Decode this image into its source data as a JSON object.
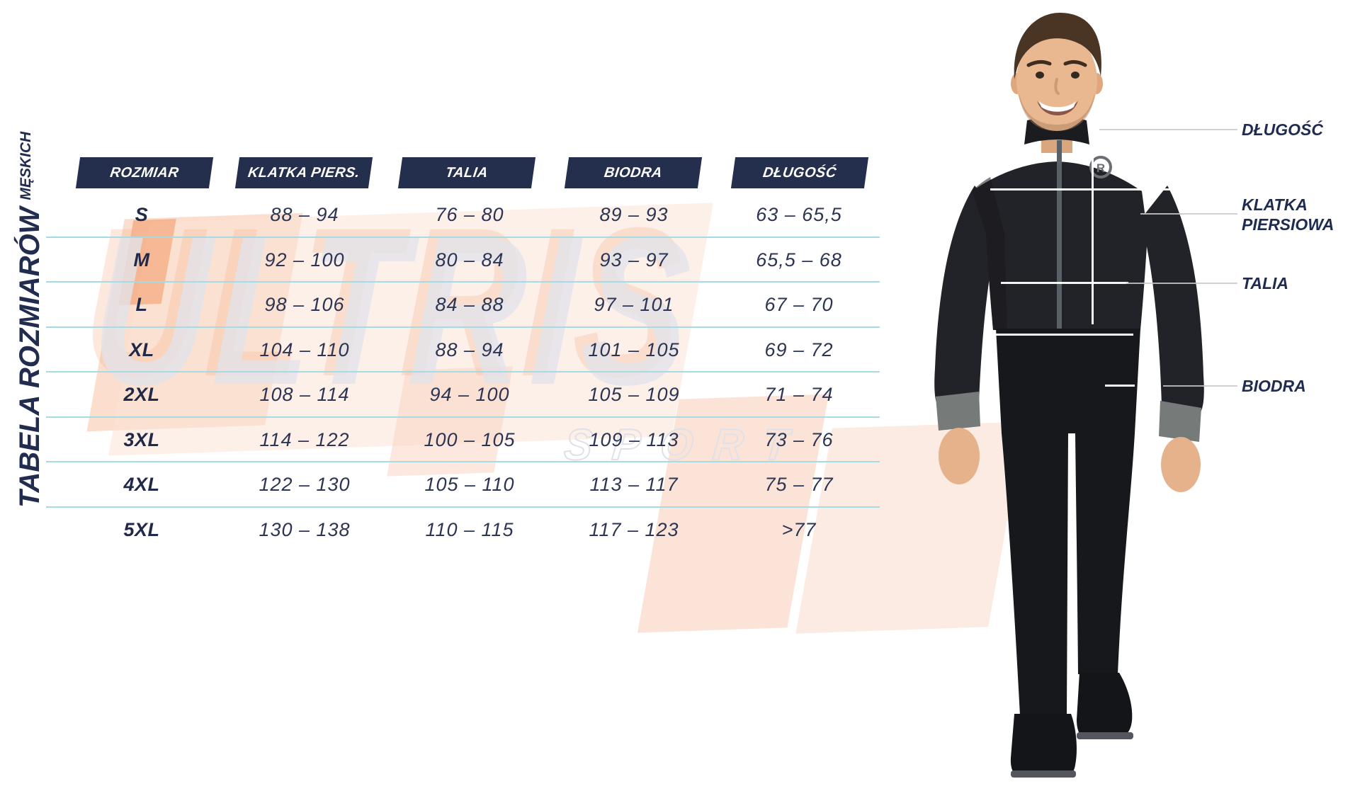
{
  "side_title": {
    "main": "TABELA ROZMIARÓW",
    "sub": "MĘSKICH"
  },
  "watermark": {
    "line1": "ULTRIS",
    "line2": "SPORT"
  },
  "table": {
    "headers": [
      "ROZMIAR",
      "KLATKA PIERS.",
      "TALIA",
      "BIODRA",
      "DŁUGOŚĆ"
    ],
    "rows": [
      {
        "size": "S",
        "chest": "88 – 94",
        "waist": "76 – 80",
        "hips": "89 – 93",
        "length": "63 – 65,5"
      },
      {
        "size": "M",
        "chest": "92 – 100",
        "waist": "80 – 84",
        "hips": "93 – 97",
        "length": "65,5 – 68"
      },
      {
        "size": "L",
        "chest": "98 – 106",
        "waist": "84 – 88",
        "hips": "97 – 101",
        "length": "67 – 70"
      },
      {
        "size": "XL",
        "chest": "104 – 110",
        "waist": "88 – 94",
        "hips": "101 – 105",
        "length": "69 – 72"
      },
      {
        "size": "2XL",
        "chest": "108 – 114",
        "waist": "94 – 100",
        "hips": "105 – 109",
        "length": "71 – 74"
      },
      {
        "size": "3XL",
        "chest": "114 – 122",
        "waist": "100 – 105",
        "hips": "109 – 113",
        "length": "73 – 76"
      },
      {
        "size": "4XL",
        "chest": "122 – 130",
        "waist": "105 – 110",
        "hips": "113 – 117",
        "length": "75 – 77"
      },
      {
        "size": "5XL",
        "chest": "130 – 138",
        "waist": "110 – 115",
        "hips": "117 – 123",
        "length": ">77"
      }
    ]
  },
  "diagram": {
    "labels": {
      "length": "DŁUGOŚĆ",
      "chest_line1": "KLATKA",
      "chest_line2": "PIERSIOWA",
      "waist": "TALIA",
      "hips": "BIODRA"
    },
    "logo_letter": "R"
  },
  "colors": {
    "navy": "#242e4d",
    "row_line": "#a6dbe3",
    "leader_gray": "#c9c9c9",
    "watermark_gray": "#e2e3ea",
    "watermark_salmon": "#f6b28c",
    "measure_line_white": "#ffffff"
  }
}
